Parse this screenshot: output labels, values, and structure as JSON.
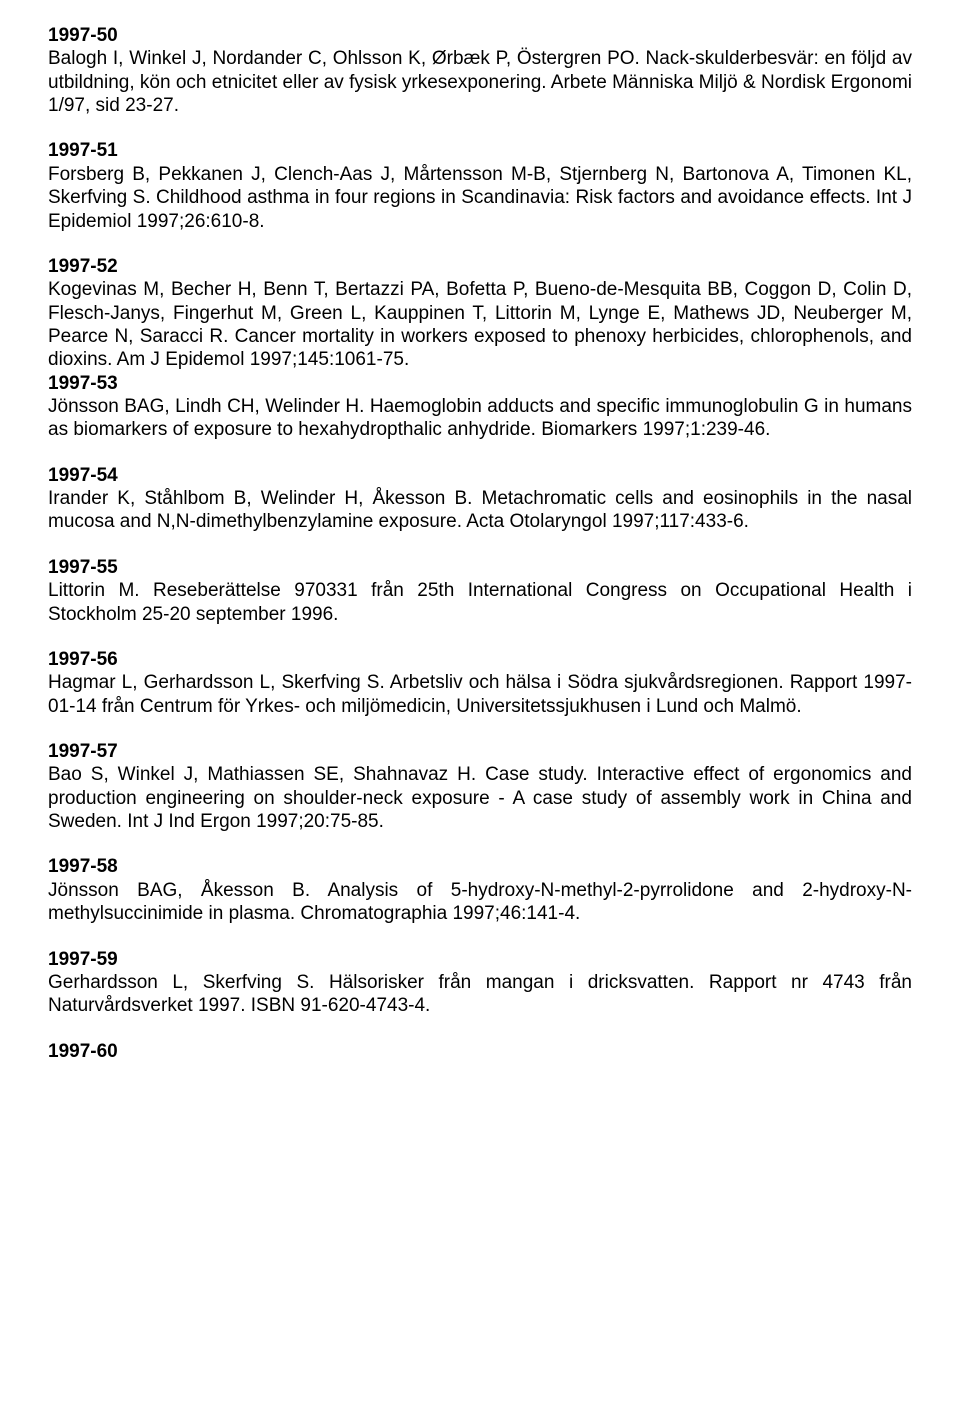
{
  "entries": [
    {
      "id": "1997-50",
      "text": "Balogh I, Winkel J, Nordander C, Ohlsson K, Ørbæk P, Östergren PO. Nack-skulderbesvär: en följd av utbildning, kön och etnicitet eller av fysisk yrkesexponering. Arbete Människa Miljö & Nordisk Ergonomi 1/97, sid 23-27."
    },
    {
      "id": "1997-51",
      "text": "Forsberg B, Pekkanen J, Clench-Aas J, Mårtensson M-B, Stjernberg N, Bartonova A, Timonen KL, Skerfving S. Childhood asthma in four regions in Scandinavia: Risk factors and avoidance effects. Int J Epidemiol 1997;26:610-8."
    },
    {
      "id": "1997-52",
      "text": "Kogevinas M, Becher H, Benn T, Bertazzi PA, Bofetta P, Bueno-de-Mesquita BB, Coggon D, Colin D, Flesch-Janys, Fingerhut M, Green L, Kauppinen T, Littorin M, Lynge E, Mathews JD, Neuberger M, Pearce N, Saracci R. Cancer mortality in workers exposed to phenoxy herbicides, chlorophenols, and dioxins. Am J Epidemol 1997;145:1061-75.",
      "tight": true
    },
    {
      "id": "1997-53",
      "text": "Jönsson BAG, Lindh CH, Welinder H. Haemoglobin adducts and specific immunoglobulin G in humans as biomarkers of exposure to hexahydropthalic anhydride. Biomarkers 1997;1:239-46."
    },
    {
      "id": "1997-54",
      "text": "Irander K, Ståhlbom B, Welinder H, Åkesson B. Metachromatic cells and eosinophils in the nasal mucosa and N,N-dimethylbenzylamine exposure. Acta Otolaryngol 1997;117:433-6."
    },
    {
      "id": "1997-55",
      "text": "Littorin M. Reseberättelse 970331 från 25th International Congress on Occupational Health i Stockholm 25-20 september 1996."
    },
    {
      "id": "1997-56",
      "text": "Hagmar L, Gerhardsson L, Skerfving S. Arbetsliv och hälsa i Södra sjukvårdsregionen. Rapport 1997-01-14 från Centrum för Yrkes- och miljömedicin, Universitetssjukhusen i Lund och Malmö."
    },
    {
      "id": "1997-57",
      "text": "Bao S, Winkel J, Mathiassen SE, Shahnavaz H. Case study. Interactive effect of ergonomics and production engineering on shoulder-neck exposure - A case study of assembly work in China and Sweden. Int J Ind Ergon 1997;20:75-85."
    },
    {
      "id": "1997-58",
      "text": "Jönsson BAG, Åkesson B. Analysis of 5-hydroxy-N-methyl-2-pyrrolidone and 2-hydroxy-N-methylsuccinimide in plasma. Chromatographia 1997;46:141-4."
    },
    {
      "id": "1997-59",
      "text": "Gerhardsson L, Skerfving S. Hälsorisker från mangan i dricksvatten. Rapport nr 4743 från Naturvårdsverket 1997. ISBN 91-620-4743-4."
    },
    {
      "id": "1997-60",
      "text": ""
    }
  ]
}
